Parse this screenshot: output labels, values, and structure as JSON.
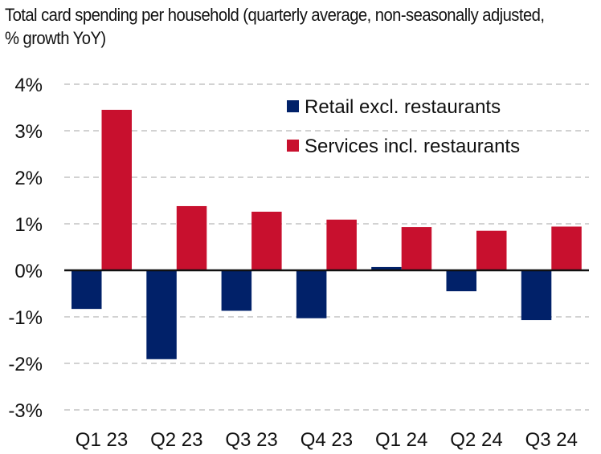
{
  "chart_data": {
    "type": "bar",
    "title": "Total card spending per household (quarterly average, non-seasonally adjusted, % growth YoY)",
    "xlabel": "",
    "ylabel": "",
    "categories": [
      "Q1 23",
      "Q2 23",
      "Q3 23",
      "Q4 23",
      "Q1 24",
      "Q2 24",
      "Q3 24"
    ],
    "series": [
      {
        "name": "Retail excl. restaurants",
        "color": "#012169",
        "values": [
          -0.83,
          -1.91,
          -0.87,
          -1.03,
          0.07,
          -0.45,
          -1.07
        ]
      },
      {
        "name": "Services incl. restaurants",
        "color": "#C8102E",
        "values": [
          3.45,
          1.38,
          1.26,
          1.09,
          0.93,
          0.85,
          0.94
        ]
      }
    ],
    "ylim": [
      -3,
      4
    ],
    "yticks": [
      4,
      3,
      2,
      1,
      0,
      -1,
      -2,
      -3
    ],
    "ytick_labels": [
      "4%",
      "3%",
      "2%",
      "1%",
      "0%",
      "-1%",
      "-2%",
      "-3%"
    ],
    "grid": true,
    "legend": "top-right"
  }
}
